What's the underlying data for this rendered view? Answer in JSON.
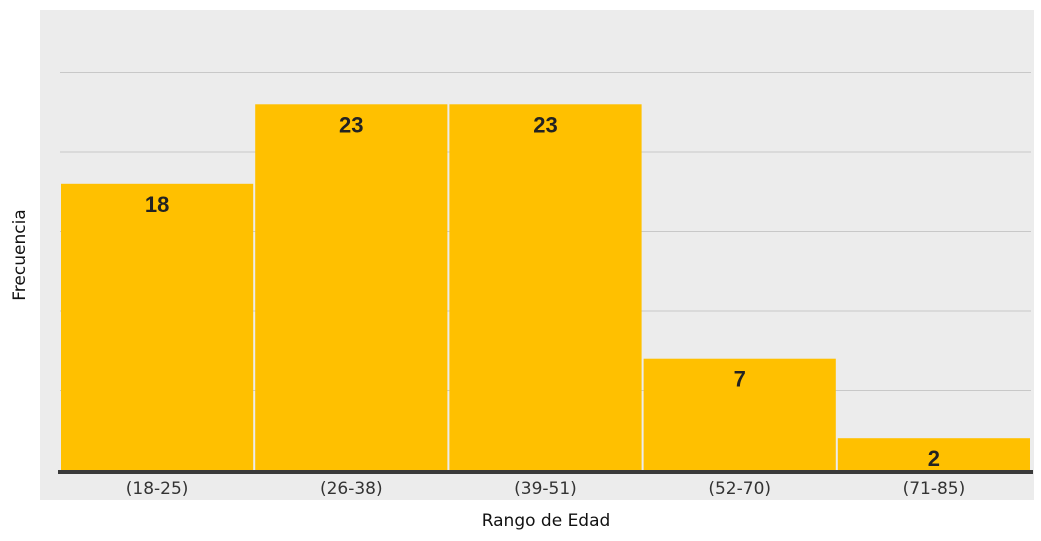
{
  "chart_data": {
    "type": "bar",
    "title": "",
    "xlabel": "Rango de Edad",
    "ylabel": "Frecuencia",
    "categories": [
      "(18-25)",
      "(26-38)",
      "(39-51)",
      "(52-70)",
      "(71-85)"
    ],
    "values": [
      18,
      23,
      23,
      7,
      2
    ],
    "data_labels": [
      "18",
      "23",
      "23",
      "7",
      "2"
    ],
    "ylim": [
      0,
      25
    ],
    "grid": true,
    "legend": "none",
    "colors": {
      "bar": "#FFC000",
      "plot_background": "#ECECEC",
      "gridline": "#C8C8C8",
      "baseline": "#3A3A3A",
      "label_text": "#222222"
    }
  }
}
